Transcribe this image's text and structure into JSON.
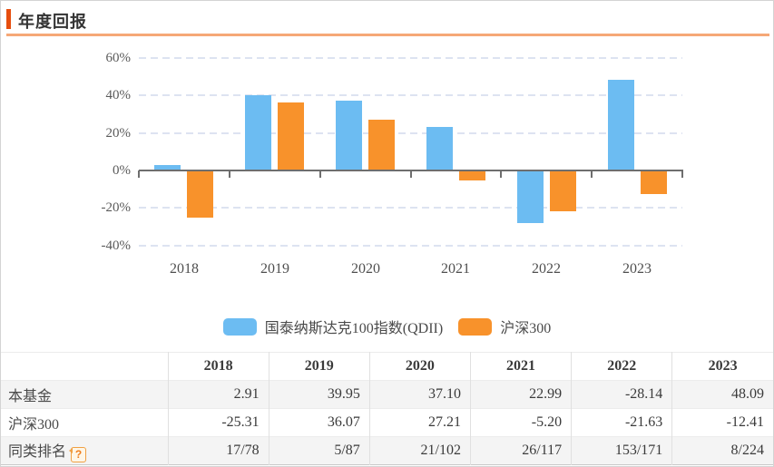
{
  "header": {
    "title": "年度回报",
    "accent_color": "#E64E0E",
    "underline_color": "#F6A877"
  },
  "chart_data": {
    "type": "bar",
    "title": "年度回报",
    "categories": [
      "2018",
      "2019",
      "2020",
      "2021",
      "2022",
      "2023"
    ],
    "series": [
      {
        "name": "国泰纳斯达克100指数(QDII)",
        "color": "#6CBCF2",
        "values": [
          2.91,
          39.95,
          37.1,
          22.99,
          -28.14,
          48.09
        ]
      },
      {
        "name": "沪深300",
        "color": "#F8922B",
        "values": [
          -25.31,
          36.07,
          27.21,
          -5.2,
          -21.63,
          -12.41
        ]
      }
    ],
    "ylim": [
      -40,
      60
    ],
    "yticks": [
      60,
      40,
      20,
      0,
      -20,
      -40
    ],
    "ytick_labels": [
      "60%",
      "40%",
      "20%",
      "0%",
      "-20%",
      "-40%"
    ],
    "grid": "horizontal-dashed",
    "grid_color": "#dde3f1",
    "axis_color": "#6e6e6e",
    "legend_position": "bottom"
  },
  "table": {
    "col_headers": [
      "2018",
      "2019",
      "2020",
      "2021",
      "2022",
      "2023"
    ],
    "rows": [
      {
        "label": "本基金",
        "help": false,
        "values": [
          "2.91",
          "39.95",
          "37.10",
          "22.99",
          "-28.14",
          "48.09"
        ]
      },
      {
        "label": "沪深300",
        "help": false,
        "values": [
          "-25.31",
          "36.07",
          "27.21",
          "-5.20",
          "-21.63",
          "-12.41"
        ]
      },
      {
        "label": "同类排名",
        "help": true,
        "help_label": "?",
        "values": [
          "17/78",
          "5/87",
          "21/102",
          "26/117",
          "153/171",
          "8/224"
        ]
      }
    ]
  }
}
